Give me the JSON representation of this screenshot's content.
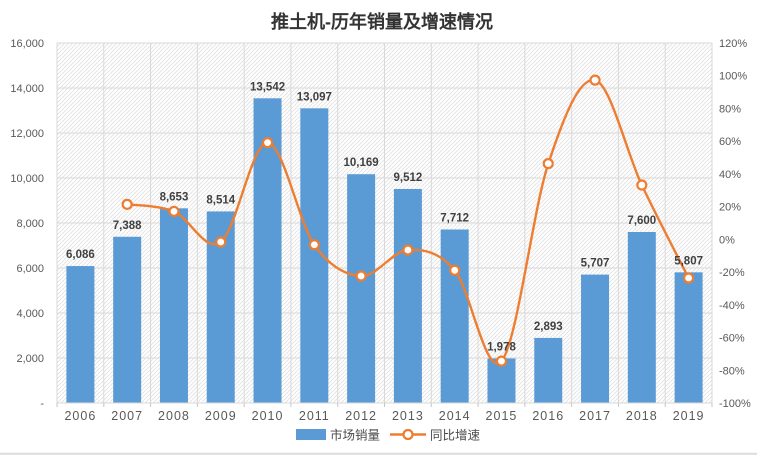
{
  "chart_data": {
    "type": "bar+line-combo",
    "title": "推土机-历年销量及增速情况",
    "categories": [
      "2006",
      "2007",
      "2008",
      "2009",
      "2010",
      "2011",
      "2012",
      "2013",
      "2014",
      "2015",
      "2016",
      "2017",
      "2018",
      "2019"
    ],
    "series": [
      {
        "name": "市场销量",
        "type": "bar",
        "axis": "left",
        "color": "#5B9BD5",
        "values": [
          6086,
          7388,
          8653,
          8514,
          13542,
          13097,
          10169,
          9512,
          7712,
          1978,
          2893,
          5707,
          7600,
          5807
        ],
        "data_labels": [
          "6,086",
          "7,388",
          "8,653",
          "8,514",
          "13,542",
          "13,097",
          "10,169",
          "9,512",
          "7,712",
          "1,978",
          "2,893",
          "5,707",
          "7,600",
          "5,807"
        ]
      },
      {
        "name": "同比增速",
        "type": "line",
        "axis": "right",
        "color": "#ED7D31",
        "marker": "circle-white-fill",
        "smooth": true,
        "start_category": "2007",
        "values_percent": [
          21.4,
          17.1,
          -1.6,
          59.1,
          -3.3,
          -22.4,
          -6.5,
          -18.9,
          -74.4,
          46.3,
          97.3,
          33.2,
          -23.6
        ]
      }
    ],
    "left_axis": {
      "min": 0,
      "max": 16000,
      "step": 2000,
      "tick_labels_top_to_bottom": [
        "16,000",
        "14,000",
        "12,000",
        "10,000",
        "8,000",
        "6,000",
        "4,000",
        "2,000",
        "-"
      ]
    },
    "right_axis": {
      "min": -100,
      "max": 120,
      "step": 20,
      "tick_labels_top_to_bottom": [
        "120%",
        "100%",
        "80%",
        "60%",
        "40%",
        "20%",
        "0%",
        "-20%",
        "-40%",
        "-60%",
        "-80%",
        "-100%"
      ]
    },
    "grid": {
      "horizontal": true,
      "vertical": true
    },
    "plot_background": "diagonal-hatch",
    "legend_position": "bottom",
    "colors": {
      "bar": "#5B9BD5",
      "line": "#ED7D31",
      "grid": "#d9d9d9",
      "axis_line": "#c6c6c6",
      "hatch": "#e3e3e3",
      "axis_text": "#595959",
      "data_label": "#404040",
      "title": "#333333"
    }
  }
}
